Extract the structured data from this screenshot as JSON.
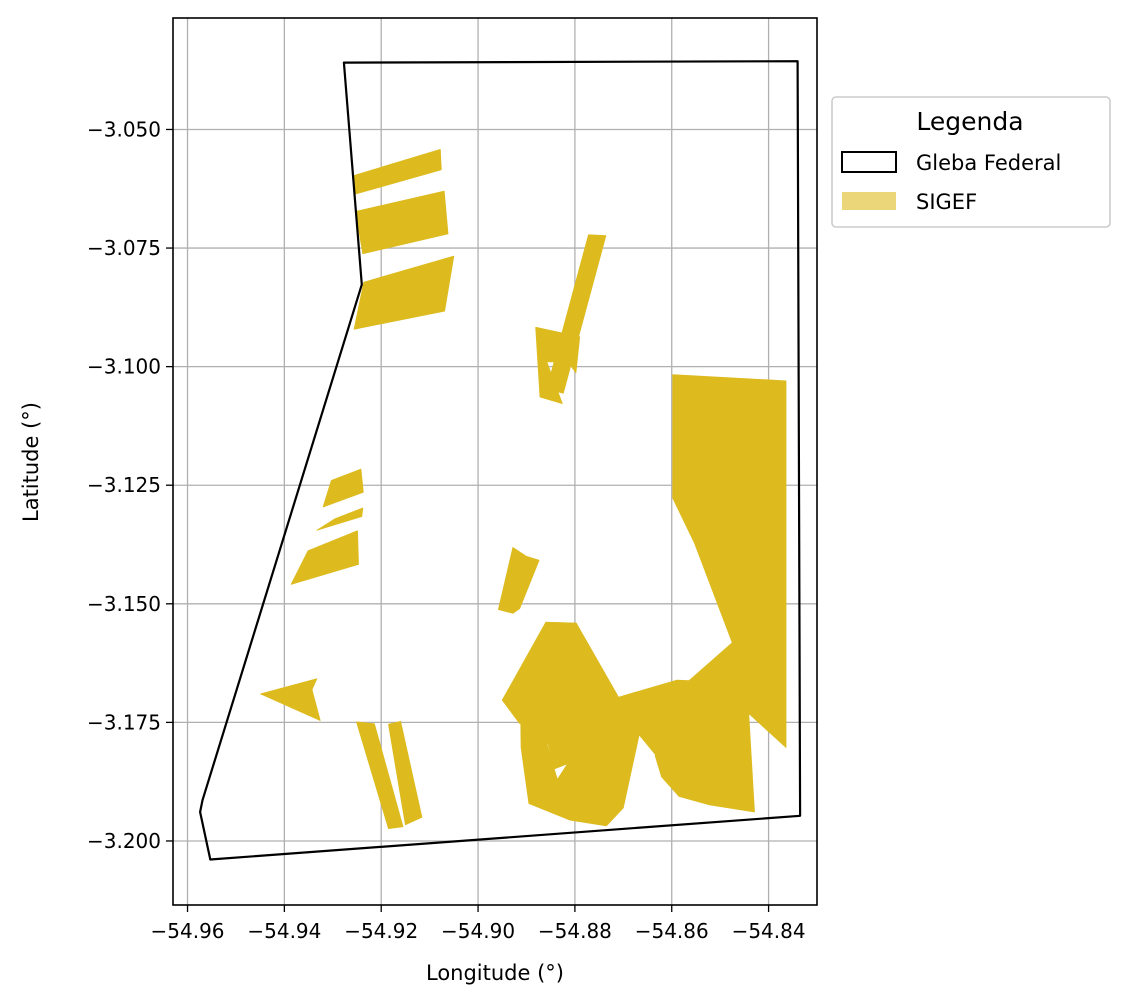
{
  "chart_data": {
    "type": "map",
    "xlabel": "Longitude (°)",
    "ylabel": "Latitude (°)",
    "xlim": [
      -54.963,
      -54.83
    ],
    "ylim": [
      -3.2135,
      -3.0265
    ],
    "x_ticks": [
      -54.96,
      -54.94,
      -54.92,
      -54.9,
      -54.88,
      -54.86,
      -54.84
    ],
    "x_tick_labels": [
      "−54.96",
      "−54.94",
      "−54.92",
      "−54.90",
      "−54.88",
      "−54.86",
      "−54.84"
    ],
    "y_ticks": [
      -3.05,
      -3.075,
      -3.1,
      -3.125,
      -3.15,
      -3.175,
      -3.2
    ],
    "y_tick_labels": [
      "−3.050",
      "−3.075",
      "−3.100",
      "−3.125",
      "−3.150",
      "−3.175",
      "−3.200"
    ],
    "grid": true,
    "legend": {
      "title": "Legenda",
      "placement": "outside-right-top",
      "entries": [
        {
          "label": "Gleba Federal",
          "style": "outline",
          "color": "#000000"
        },
        {
          "label": "SIGEF",
          "style": "fill",
          "color": "#DDBB1F",
          "alpha": 0.6
        }
      ]
    },
    "colors": {
      "sigef_fill": "#DDBB1F",
      "gleba_edge": "#000000",
      "grid": "#B0B0B0"
    },
    "layers": [
      {
        "name": "Gleba Federal",
        "type": "polygon-outline",
        "features": [
          {
            "coords": [
              [
                -54.9277,
                -3.0359
              ],
              [
                -54.834,
                -3.0356
              ],
              [
                -54.8335,
                -3.1947
              ],
              [
                -54.9553,
                -3.2039
              ],
              [
                -54.9574,
                -3.1939
              ],
              [
                -54.9569,
                -3.1914
              ],
              [
                -54.924,
                -3.0827
              ],
              [
                -54.9277,
                -3.0359
              ]
            ]
          }
        ]
      },
      {
        "name": "SIGEF",
        "type": "polygon-fill",
        "features": [
          {
            "coords": [
              [
                -54.9256,
                -3.0597
              ],
              [
                -54.9078,
                -3.0542
              ],
              [
                -54.9076,
                -3.0585
              ],
              [
                -54.9253,
                -3.0636
              ]
            ]
          },
          {
            "coords": [
              [
                -54.9253,
                -3.0673
              ],
              [
                -54.907,
                -3.063
              ],
              [
                -54.9062,
                -3.072
              ],
              [
                -54.9238,
                -3.0762
              ]
            ]
          },
          {
            "coords": [
              [
                -54.9236,
                -3.0822
              ],
              [
                -54.905,
                -3.0767
              ],
              [
                -54.9069,
                -3.0883
              ],
              [
                -54.9256,
                -3.0921
              ]
            ]
          },
          {
            "coords": [
              [
                -54.8772,
                -3.0722
              ],
              [
                -54.8736,
                -3.0724
              ],
              [
                -54.8824,
                -3.1056
              ],
              [
                -54.8858,
                -3.1047
              ]
            ]
          },
          {
            "coords": [
              [
                -54.8881,
                -3.0917
              ],
              [
                -54.879,
                -3.0937
              ],
              [
                -54.8798,
                -3.1013
              ],
              [
                -54.8814,
                -3.099
              ],
              [
                -54.8858,
                -3.099
              ],
              [
                -54.8826,
                -3.1078
              ],
              [
                -54.8872,
                -3.1064
              ]
            ]
          },
          {
            "coords": [
              [
                -54.8598,
                -3.1017
              ],
              [
                -54.8364,
                -3.103
              ],
              [
                -54.8364,
                -3.1126
              ],
              [
                -54.8411,
                -3.1253
              ],
              [
                -54.8567,
                -3.1296
              ],
              [
                -54.8598,
                -3.1277
              ]
            ]
          },
          {
            "coords": [
              [
                -54.8598,
                -3.1277
              ],
              [
                -54.8411,
                -3.1253
              ],
              [
                -54.8364,
                -3.1126
              ],
              [
                -54.8364,
                -3.1553
              ],
              [
                -54.8412,
                -3.1539
              ],
              [
                -54.8553,
                -3.1372
              ]
            ]
          },
          {
            "coords": [
              [
                -54.8553,
                -3.1372
              ],
              [
                -54.8412,
                -3.1539
              ],
              [
                -54.8364,
                -3.1553
              ],
              [
                -54.8364,
                -3.1686
              ],
              [
                -54.842,
                -3.1697
              ],
              [
                -54.8475,
                -3.1582
              ]
            ]
          },
          {
            "coords": [
              [
                -54.8475,
                -3.1582
              ],
              [
                -54.842,
                -3.1697
              ],
              [
                -54.8364,
                -3.1686
              ],
              [
                -54.8364,
                -3.1803
              ],
              [
                -54.8441,
                -3.1731
              ],
              [
                -54.8564,
                -3.1662
              ]
            ]
          },
          {
            "coords": [
              [
                -54.8564,
                -3.1662
              ],
              [
                -54.8441,
                -3.1731
              ],
              [
                -54.8429,
                -3.1939
              ],
              [
                -54.8522,
                -3.1924
              ],
              [
                -54.8585,
                -3.1906
              ],
              [
                -54.8621,
                -3.1865
              ],
              [
                -54.8634,
                -3.1821
              ],
              [
                -54.8621,
                -3.172
              ],
              [
                -54.8636,
                -3.1699
              ],
              [
                -54.859,
                -3.1661
              ]
            ]
          },
          {
            "coords": [
              [
                -54.859,
                -3.1661
              ],
              [
                -54.8636,
                -3.1699
              ],
              [
                -54.8621,
                -3.172
              ],
              [
                -54.8634,
                -3.1821
              ],
              [
                -54.8585,
                -3.1906
              ],
              [
                -54.8612,
                -3.1845
              ],
              [
                -54.8656,
                -3.179
              ],
              [
                -54.8697,
                -3.174
              ],
              [
                -54.871,
                -3.1697
              ]
            ]
          },
          {
            "coords": [
              [
                -54.8797,
                -3.1541
              ],
              [
                -54.886,
                -3.1539
              ],
              [
                -54.895,
                -3.1703
              ],
              [
                -54.8915,
                -3.1751
              ],
              [
                -54.8855,
                -3.1796
              ],
              [
                -54.8775,
                -3.1774
              ],
              [
                -54.871,
                -3.1697
              ]
            ]
          },
          {
            "coords": [
              [
                -54.895,
                -3.1703
              ],
              [
                -54.8855,
                -3.1796
              ],
              [
                -54.8843,
                -3.1848
              ],
              [
                -54.8742,
                -3.1808
              ],
              [
                -54.8775,
                -3.1774
              ]
            ]
          },
          {
            "coords": [
              [
                -54.8912,
                -3.1732
              ],
              [
                -54.8871,
                -3.1747
              ],
              [
                -54.8843,
                -3.1848
              ],
              [
                -54.881,
                -3.1956
              ],
              [
                -54.8895,
                -3.1921
              ],
              [
                -54.8911,
                -3.1803
              ]
            ]
          },
          {
            "coords": [
              [
                -54.886,
                -3.1539
              ],
              [
                -54.8797,
                -3.1541
              ],
              [
                -54.8728,
                -3.1694
              ],
              [
                -54.871,
                -3.1697
              ],
              [
                -54.8697,
                -3.174
              ],
              [
                -54.8742,
                -3.1808
              ],
              [
                -54.8843,
                -3.1848
              ],
              [
                -54.8855,
                -3.1796
              ]
            ]
          },
          {
            "coords": [
              [
                -54.8853,
                -3.1897
              ],
              [
                -54.881,
                -3.1956
              ],
              [
                -54.8768,
                -3.1917
              ],
              [
                -54.879,
                -3.1884
              ]
            ]
          },
          {
            "coords": [
              [
                -54.8755,
                -3.1869
              ],
              [
                -54.879,
                -3.1884
              ],
              [
                -54.8768,
                -3.1917
              ],
              [
                -54.881,
                -3.1956
              ],
              [
                -54.8735,
                -3.1968
              ],
              [
                -54.87,
                -3.193
              ]
            ]
          },
          {
            "coords": [
              [
                -54.8775,
                -3.1774
              ],
              [
                -54.8742,
                -3.1808
              ],
              [
                -54.8697,
                -3.174
              ],
              [
                -54.8655,
                -3.1718
              ],
              [
                -54.87,
                -3.193
              ],
              [
                -54.8755,
                -3.1869
              ],
              [
                -54.879,
                -3.1884
              ],
              [
                -54.8853,
                -3.1897
              ]
            ]
          },
          {
            "coords": [
              [
                -54.8928,
                -3.1381
              ],
              [
                -54.89,
                -3.14
              ],
              [
                -54.8874,
                -3.1408
              ],
              [
                -54.8914,
                -3.151
              ],
              [
                -54.8928,
                -3.152
              ],
              [
                -54.8958,
                -3.1512
              ]
            ]
          },
          {
            "coords": [
              [
                -54.9303,
                -3.124
              ],
              [
                -54.9242,
                -3.1216
              ],
              [
                -54.9237,
                -3.1265
              ],
              [
                -54.932,
                -3.1296
              ]
            ]
          },
          {
            "coords": [
              [
                -54.9296,
                -3.1321
              ],
              [
                -54.9238,
                -3.1298
              ],
              [
                -54.924,
                -3.1316
              ],
              [
                -54.9333,
                -3.1345
              ]
            ]
          },
          {
            "coords": [
              [
                -54.9351,
                -3.1388
              ],
              [
                -54.9249,
                -3.1346
              ],
              [
                -54.9247,
                -3.1417
              ],
              [
                -54.9386,
                -3.1459
              ]
            ]
          },
          {
            "coords": [
              [
                -54.9333,
                -3.1658
              ],
              [
                -54.9343,
                -3.1681
              ],
              [
                -54.9326,
                -3.1746
              ],
              [
                -54.9449,
                -3.169
              ]
            ]
          },
          {
            "coords": [
              [
                -54.9251,
                -3.1749
              ],
              [
                -54.9214,
                -3.1753
              ],
              [
                -54.9155,
                -3.197
              ],
              [
                -54.9185,
                -3.1974
              ]
            ]
          },
          {
            "coords": [
              [
                -54.9185,
                -3.1754
              ],
              [
                -54.916,
                -3.1748
              ],
              [
                -54.9116,
                -3.195
              ],
              [
                -54.915,
                -3.1966
              ]
            ]
          }
        ]
      }
    ]
  }
}
